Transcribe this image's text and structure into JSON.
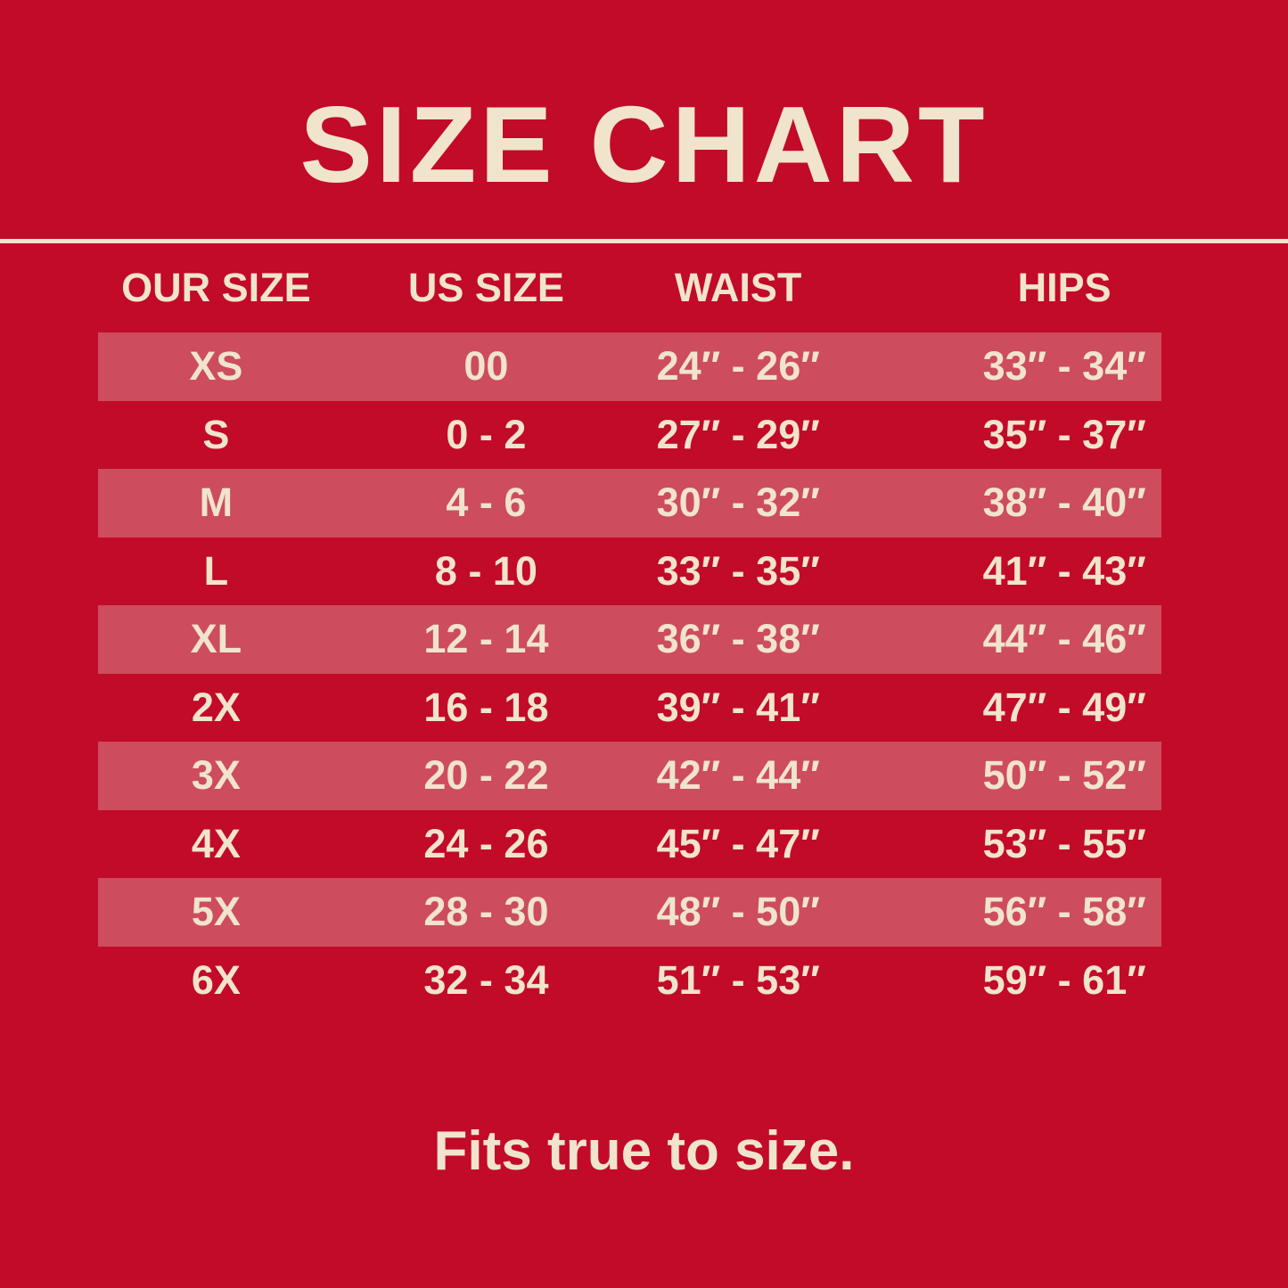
{
  "title": "SIZE CHART",
  "footer": "Fits true to size.",
  "colors": {
    "background": "#C20A29",
    "stripe": "#CD4C5E",
    "text": "#F0E4CD"
  },
  "chart_data": {
    "type": "table",
    "title": "SIZE CHART",
    "columns": [
      "OUR SIZE",
      "US SIZE",
      "WAIST",
      "HIPS"
    ],
    "rows": [
      [
        "XS",
        "00",
        "24″ - 26″",
        "33″ - 34″"
      ],
      [
        "S",
        "0 - 2",
        "27″ - 29″",
        "35″ - 37″"
      ],
      [
        "M",
        "4 - 6",
        "30″ - 32″",
        "38″ - 40″"
      ],
      [
        "L",
        "8 - 10",
        "33″ - 35″",
        "41″ - 43″"
      ],
      [
        "XL",
        "12 - 14",
        "36″ - 38″",
        "44″ - 46″"
      ],
      [
        "2X",
        "16 - 18",
        "39″ - 41″",
        "47″ - 49″"
      ],
      [
        "3X",
        "20 - 22",
        "42″ - 44″",
        "50″ - 52″"
      ],
      [
        "4X",
        "24 - 26",
        "45″ - 47″",
        "53″ - 55″"
      ],
      [
        "5X",
        "28 - 30",
        "48″ - 50″",
        "56″ - 58″"
      ],
      [
        "6X",
        "32 - 34",
        "51″ - 53″",
        "59″ - 61″"
      ]
    ],
    "striped_row_indices": [
      0,
      2,
      4,
      6,
      8
    ],
    "layout": "striped rows on red background, cream text, footer note below table"
  }
}
